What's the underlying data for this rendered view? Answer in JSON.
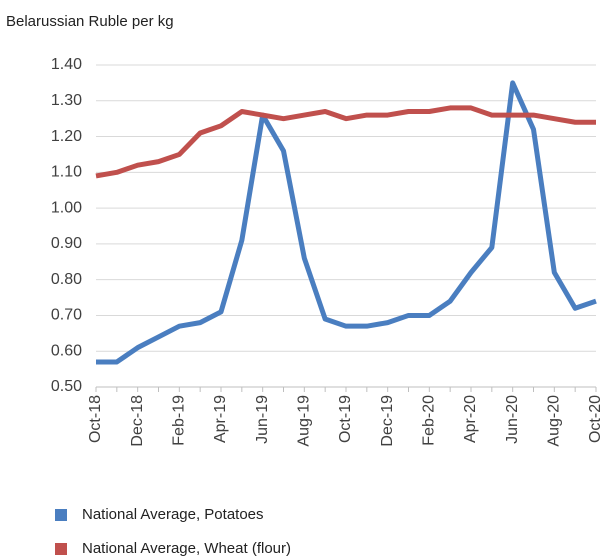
{
  "chart_data": {
    "type": "line",
    "y_label": "Belarussian Ruble per kg",
    "categories": [
      "Oct-18",
      null,
      "Dec-18",
      null,
      "Feb-19",
      null,
      "Apr-19",
      null,
      "Jun-19",
      null,
      "Aug-19",
      null,
      "Oct-19",
      null,
      "Dec-19",
      null,
      "Feb-20",
      null,
      "Apr-20",
      null,
      "Jun-20",
      null,
      "Aug-20",
      null,
      "Oct-20"
    ],
    "series": [
      {
        "name": "National Average, Potatoes",
        "color": "#4a7ec0",
        "values": [
          0.57,
          0.57,
          0.61,
          0.64,
          0.67,
          0.68,
          0.71,
          0.91,
          1.26,
          1.16,
          0.86,
          0.69,
          0.67,
          0.67,
          0.68,
          0.7,
          0.7,
          0.74,
          0.82,
          0.89,
          1.35,
          1.22,
          0.82,
          0.72,
          0.74
        ]
      },
      {
        "name": "National Average, Wheat (flour)",
        "color": "#c0504d",
        "values": [
          1.09,
          1.1,
          1.12,
          1.13,
          1.15,
          1.21,
          1.23,
          1.27,
          1.26,
          1.25,
          1.26,
          1.27,
          1.25,
          1.26,
          1.26,
          1.27,
          1.27,
          1.28,
          1.28,
          1.26,
          1.26,
          1.26,
          1.25,
          1.24,
          1.24
        ]
      }
    ],
    "ylim": [
      0.5,
      1.4
    ],
    "yticks": [
      {
        "value": 0.5,
        "label": "0.50"
      },
      {
        "value": 0.6,
        "label": "0.60"
      },
      {
        "value": 0.7,
        "label": "0.70"
      },
      {
        "value": 0.8,
        "label": "0.80"
      },
      {
        "value": 0.9,
        "label": "0.90"
      },
      {
        "value": 1.0,
        "label": "1.00"
      },
      {
        "value": 1.1,
        "label": "1.10"
      },
      {
        "value": 1.2,
        "label": "1.20"
      },
      {
        "value": 1.3,
        "label": "1.30"
      },
      {
        "value": 1.4,
        "label": "1.40"
      }
    ],
    "grid": true,
    "legend": "bottom"
  }
}
